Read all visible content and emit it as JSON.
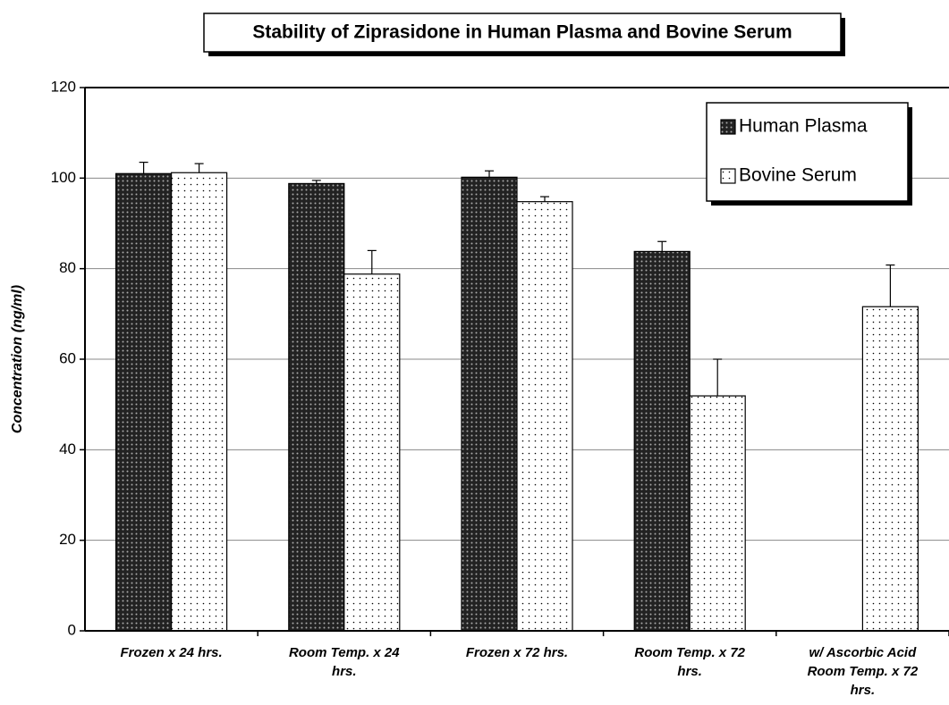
{
  "chart_data": {
    "type": "bar",
    "title": "Stability of Ziprasidone in Human Plasma and Bovine Serum",
    "y_label": "Concentration (ng/ml)",
    "categories": [
      "Frozen x 24 hrs.",
      "Room Temp. x 24 hrs.",
      "Frozen x 72 hrs.",
      "Room Temp. x 72 hrs.",
      "w/ Ascorbic Acid Room Temp. x 72 hrs."
    ],
    "series": [
      {
        "name": "Human Plasma",
        "color": "#222222",
        "values": [
          101,
          98.8,
          100.2,
          83.8,
          null
        ],
        "errors": [
          2.5,
          0.7,
          1.4,
          2.2,
          null
        ]
      },
      {
        "name": "Bovine Serum",
        "color": "#ffffff",
        "values": [
          101.2,
          78.8,
          94.8,
          51.9,
          71.6
        ],
        "errors": [
          2.0,
          5.2,
          1.1,
          8.1,
          9.2
        ]
      }
    ],
    "ylim": [
      0,
      120
    ],
    "yticks": [
      0,
      20,
      40,
      60,
      80,
      100,
      120
    ],
    "grid": true,
    "legend": "upper right"
  }
}
